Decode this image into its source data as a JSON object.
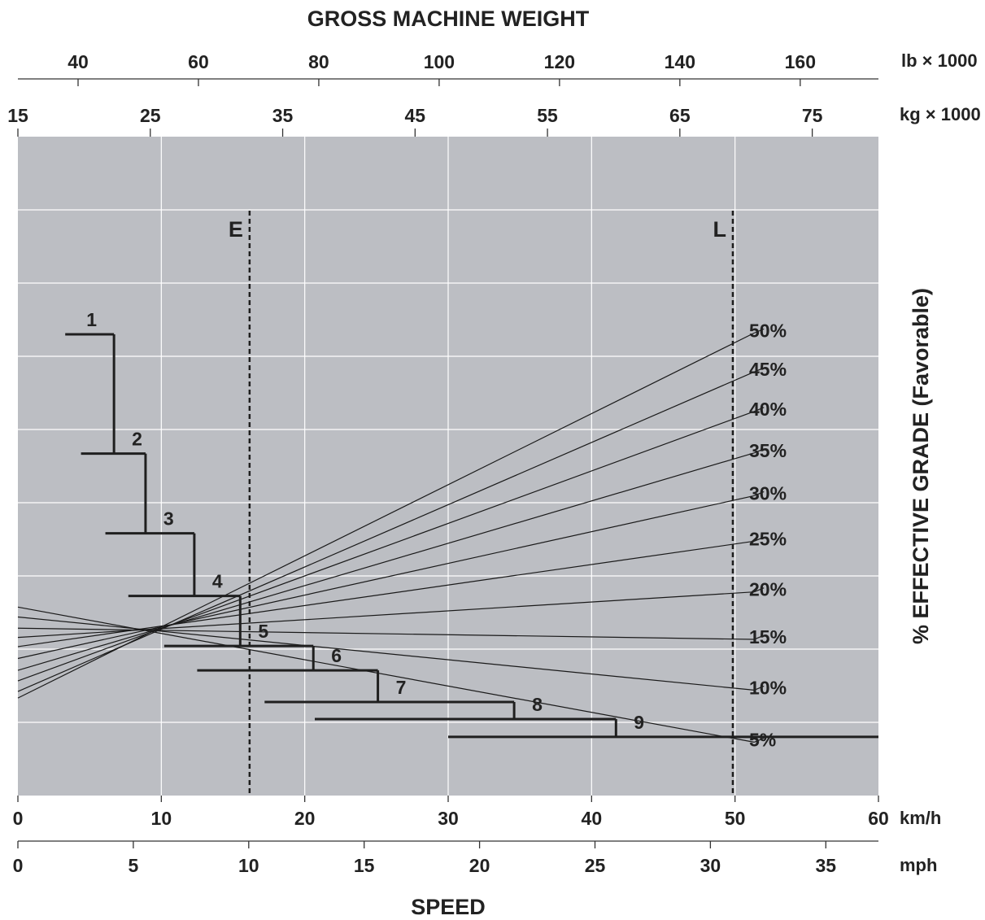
{
  "chart_data": {
    "type": "line",
    "title": "GROSS MACHINE WEIGHT",
    "xlabel": "SPEED",
    "ylabel": "% EFFECTIVE GRADE (Favorable)",
    "grid": true,
    "x_axes": [
      {
        "unit": "km/h",
        "range": [
          0,
          60
        ],
        "ticks": [
          "0",
          "10",
          "20",
          "30",
          "40",
          "50",
          "60"
        ]
      },
      {
        "unit": "mph",
        "range": [
          0,
          37.28
        ],
        "ticks": [
          "0",
          "5",
          "10",
          "15",
          "20",
          "25",
          "30",
          "35"
        ]
      }
    ],
    "weight_axes": [
      {
        "unit": "lb × 1000",
        "range": [
          30,
          173
        ],
        "ticks": [
          "40",
          "60",
          "80",
          "100",
          "120",
          "140",
          "160"
        ]
      },
      {
        "unit": "kg × 1000",
        "range": [
          15,
          80
        ],
        "ticks": [
          "15",
          "25",
          "35",
          "45",
          "55",
          "65",
          "75"
        ]
      }
    ],
    "grade_lines": [
      {
        "name": "50%",
        "at_weight_15": 0.148,
        "at_weight_70": 0.702
      },
      {
        "name": "45%",
        "at_weight_15": 0.158,
        "at_weight_70": 0.643
      },
      {
        "name": "40%",
        "at_weight_15": 0.174,
        "at_weight_70": 0.583
      },
      {
        "name": "35%",
        "at_weight_15": 0.19,
        "at_weight_70": 0.52
      },
      {
        "name": "30%",
        "at_weight_15": 0.208,
        "at_weight_70": 0.455
      },
      {
        "name": "25%",
        "at_weight_15": 0.226,
        "at_weight_70": 0.386
      },
      {
        "name": "20%",
        "at_weight_15": 0.24,
        "at_weight_70": 0.309
      },
      {
        "name": "15%",
        "at_weight_15": 0.254,
        "at_weight_70": 0.237
      },
      {
        "name": "10%",
        "at_weight_15": 0.271,
        "at_weight_70": 0.16
      },
      {
        "name": "5%",
        "at_weight_15": 0.286,
        "at_weight_70": 0.081
      }
    ],
    "gears": [
      {
        "name": "1",
        "speed_start": 3.3,
        "speed_end": 6.7,
        "level": 0.7
      },
      {
        "name": "2",
        "speed_start": 4.4,
        "speed_end": 8.9,
        "level": 0.519
      },
      {
        "name": "3",
        "speed_start": 6.1,
        "speed_end": 12.3,
        "level": 0.398
      },
      {
        "name": "4",
        "speed_start": 7.7,
        "speed_end": 15.5,
        "level": 0.303
      },
      {
        "name": "5",
        "speed_start": 10.2,
        "speed_end": 20.6,
        "level": 0.227
      },
      {
        "name": "6",
        "speed_start": 12.5,
        "speed_end": 25.1,
        "level": 0.19
      },
      {
        "name": "7",
        "speed_start": 17.2,
        "speed_end": 34.6,
        "level": 0.142
      },
      {
        "name": "8",
        "speed_start": 20.7,
        "speed_end": 41.7,
        "level": 0.116
      },
      {
        "name": "9",
        "speed_start": 30.0,
        "speed_end": 60.0,
        "level": 0.089
      }
    ],
    "reference_lines": [
      {
        "name": "E",
        "weight_kg_x1000": 32.5
      },
      {
        "name": "L",
        "weight_kg_x1000": 69.0
      }
    ]
  }
}
